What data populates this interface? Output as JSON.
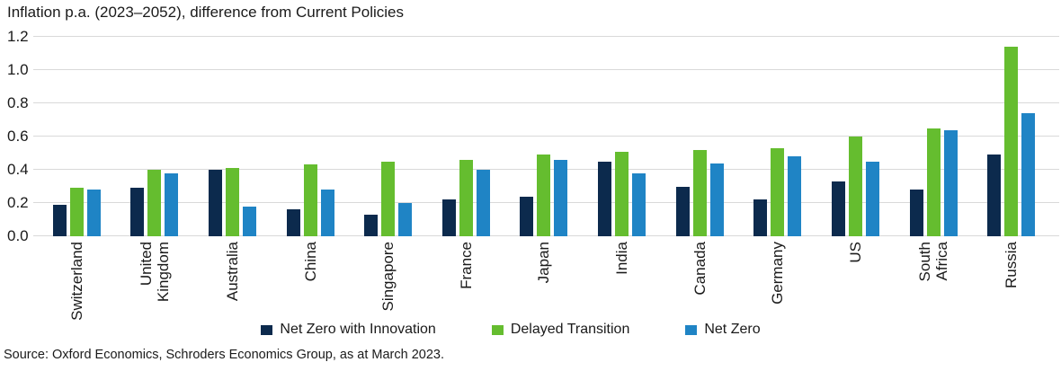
{
  "chart_data": {
    "type": "bar",
    "title": "Inflation p.a. (2023–2052), difference from Current Policies",
    "categories": [
      "Switzerland",
      "United\nKingdom",
      "Australia",
      "China",
      "Singapore",
      "France",
      "Japan",
      "India",
      "Canada",
      "Germany",
      "US",
      "South\nAfrica",
      "Russia"
    ],
    "series": [
      {
        "name": "Net Zero with Innovation",
        "color": "#0c2a4d",
        "values": [
          0.19,
          0.29,
          0.4,
          0.16,
          0.13,
          0.22,
          0.24,
          0.45,
          0.3,
          0.22,
          0.33,
          0.28,
          0.49
        ]
      },
      {
        "name": "Delayed Transition",
        "color": "#65bd2f",
        "values": [
          0.29,
          0.4,
          0.41,
          0.43,
          0.45,
          0.46,
          0.49,
          0.51,
          0.52,
          0.53,
          0.6,
          0.65,
          1.14
        ]
      },
      {
        "name": "Net Zero",
        "color": "#1f84c5",
        "values": [
          0.28,
          0.38,
          0.18,
          0.28,
          0.2,
          0.4,
          0.46,
          0.38,
          0.44,
          0.48,
          0.45,
          0.64,
          0.74
        ]
      }
    ],
    "ylim": [
      0,
      1.2
    ],
    "yticks": [
      "0.0",
      "0.2",
      "0.4",
      "0.6",
      "0.8",
      "1.0",
      "1.2"
    ],
    "grid": true,
    "legend_position": "bottom"
  },
  "source": "Source: Oxford Economics, Schroders Economics Group, as at March 2023."
}
